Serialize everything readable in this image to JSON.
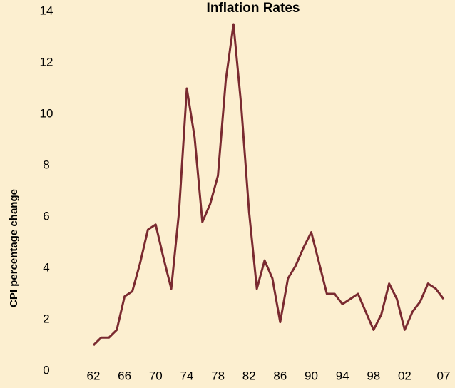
{
  "chart_data": {
    "type": "line",
    "title": "Inflation Rates",
    "ylabel": "CPI percentage change",
    "categories": [
      "62",
      null,
      null,
      null,
      "66",
      null,
      null,
      null,
      "70",
      null,
      null,
      null,
      "74",
      null,
      null,
      null,
      "78",
      null,
      null,
      null,
      "82",
      null,
      null,
      null,
      "86",
      null,
      null,
      null,
      "90",
      null,
      null,
      null,
      "94",
      null,
      null,
      null,
      "98",
      null,
      null,
      null,
      "02",
      null,
      null,
      null,
      null,
      "07"
    ],
    "series": [
      {
        "name": "CPI",
        "color": "#7a2a30",
        "values": [
          1.0,
          1.3,
          1.3,
          1.6,
          2.9,
          3.1,
          4.2,
          5.5,
          5.7,
          4.4,
          3.2,
          6.2,
          11.0,
          9.1,
          5.8,
          6.5,
          7.6,
          11.3,
          13.5,
          10.3,
          6.2,
          3.2,
          4.3,
          3.6,
          1.9,
          3.6,
          4.1,
          4.8,
          5.4,
          4.2,
          3.0,
          3.0,
          2.6,
          2.8,
          3.0,
          2.3,
          1.6,
          2.2,
          3.4,
          2.8,
          1.6,
          2.3,
          2.7,
          3.4,
          3.2,
          2.8
        ]
      }
    ],
    "ylim": [
      0,
      14
    ],
    "yticks": [
      0,
      2,
      4,
      6,
      8,
      10,
      12,
      14
    ],
    "grid": false
  }
}
